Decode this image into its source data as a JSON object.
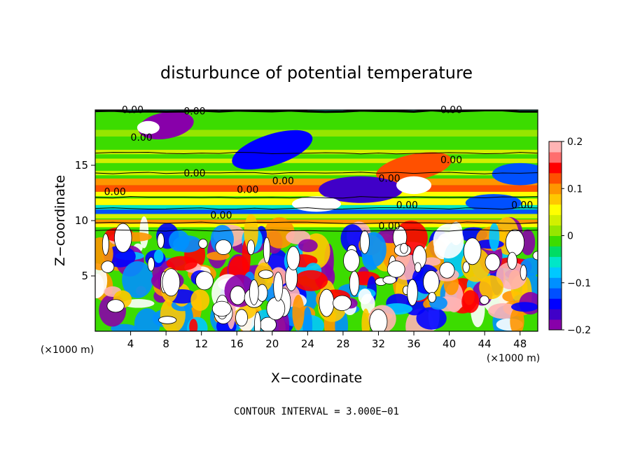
{
  "chart_data": {
    "type": "heatmap",
    "title": "disturbunce of potential temperature",
    "xlabel": "X−coordinate",
    "ylabel": "Z−coordinate",
    "x_unit": "(×1000 m)",
    "x_unit_right": "(×1000 m)",
    "xlim": [
      0,
      50
    ],
    "ylim": [
      0,
      20
    ],
    "x_ticks": [
      4,
      8,
      12,
      16,
      20,
      24,
      28,
      32,
      36,
      40,
      44,
      48
    ],
    "y_ticks": [
      5,
      10,
      15
    ],
    "colorbar": {
      "range": [
        -0.2,
        0.2
      ],
      "tick_values": [
        0.2,
        0.1,
        0,
        -0.1,
        -0.2
      ],
      "tick_labels": [
        "0.2",
        "0.1",
        "0",
        "−0.1",
        "−0.2"
      ],
      "colors": [
        "#8800aa",
        "#4000c8",
        "#0000ff",
        "#0050ff",
        "#0090ff",
        "#00c8ff",
        "#00e6c8",
        "#00dc64",
        "#3cdc00",
        "#96e600",
        "#d2f000",
        "#ffff00",
        "#ffc800",
        "#ff9600",
        "#ff5000",
        "#ff0000",
        "#ff6e6e",
        "#ffb4b4"
      ]
    },
    "contour_labels": [
      "0.00",
      "0.00",
      "0.00",
      "0.00",
      "0.00",
      "0.00",
      "0.00",
      "0.00",
      "0.00",
      "0.00",
      "0.00",
      "0.00",
      "0.00",
      "0.00"
    ],
    "footer": "CONTOUR INTERVAL = 3.000E−01"
  }
}
